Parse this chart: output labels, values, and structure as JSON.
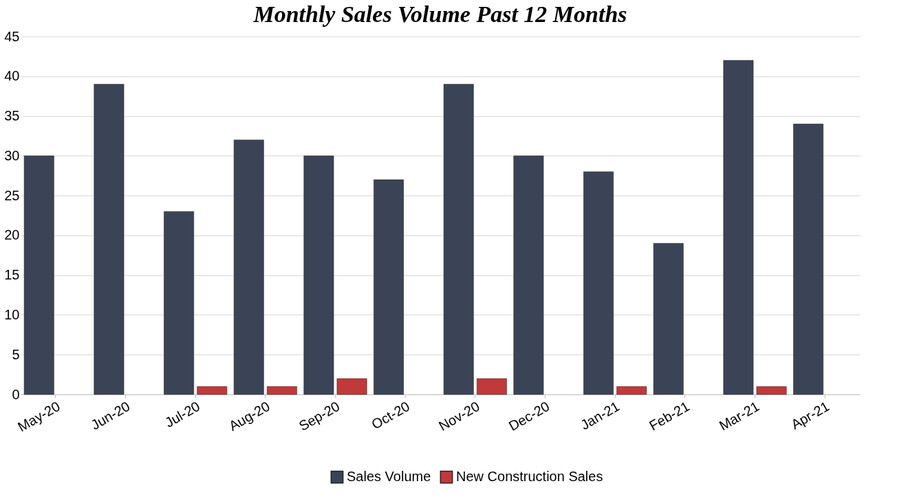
{
  "chart_data": {
    "type": "bar",
    "title": "Monthly Sales Volume Past 12 Months",
    "categories": [
      "May-20",
      "Jun-20",
      "Jul-20",
      "Aug-20",
      "Sep-20",
      "Oct-20",
      "Nov-20",
      "Dec-20",
      "Jan-21",
      "Feb-21",
      "Mar-21",
      "Apr-21"
    ],
    "series": [
      {
        "name": "Sales Volume",
        "color": "#3b4456",
        "values": [
          30,
          39,
          23,
          32,
          30,
          27,
          39,
          30,
          28,
          19,
          42,
          34
        ]
      },
      {
        "name": "New Construction Sales",
        "color": "#c0393b",
        "values": [
          null,
          null,
          1,
          1,
          2,
          null,
          2,
          null,
          1,
          null,
          1,
          null
        ]
      }
    ],
    "ylim": [
      0,
      45
    ],
    "yticks": [
      0,
      5,
      10,
      15,
      20,
      25,
      30,
      35,
      40,
      45
    ],
    "grid": "y",
    "legend": "bottom"
  }
}
